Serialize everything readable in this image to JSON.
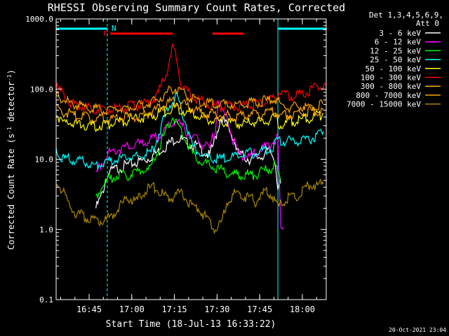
{
  "chart_data": {
    "type": "line",
    "title": "RHESSI Observing Summary Count Rates, Corrected",
    "xlabel": "Start Time (18-Jul-13 16:33:22)",
    "ylabel_parts": [
      "Corrected Count Rate (s",
      "-1",
      " detector",
      "-1",
      ")"
    ],
    "footer_date": "20-Oct-2021 23:04",
    "legend_header": [
      "Det 1,3,4,5,6,9,",
      "Att 0"
    ],
    "legend_placement": "top-right, outside plot",
    "y_scale": "log",
    "ylim": [
      0.1,
      1000
    ],
    "y_ticks": [
      0.1,
      1.0,
      10.0,
      100.0,
      1000.0
    ],
    "y_tick_labels": [
      "0.1",
      "1.0",
      "10.0",
      "100.0",
      "1000.0"
    ],
    "x_unit": "minutes since 16:33:22",
    "xlim": [
      0,
      95
    ],
    "x_ticks": [
      {
        "label": "16:45",
        "x": 11.6
      },
      {
        "label": "17:00",
        "x": 26.6
      },
      {
        "label": "17:15",
        "x": 41.6
      },
      {
        "label": "17:30",
        "x": 56.6
      },
      {
        "label": "17:45",
        "x": 71.6
      },
      {
        "label": "18:00",
        "x": 86.6
      }
    ],
    "flags": [
      {
        "label": "N",
        "color": "#00ffff",
        "segments": [
          [
            0,
            18
          ],
          [
            78,
            95
          ]
        ]
      },
      {
        "label": "F",
        "color": "#ff0000",
        "segments": [
          [
            19,
            41
          ],
          [
            55,
            66
          ]
        ]
      }
    ],
    "night_boundaries": [
      18.0,
      78.0,
      95.0
    ],
    "series": [
      {
        "name": "3 - 6 keV",
        "color": "#ffffff",
        "points": [
          [
            14,
            2
          ],
          [
            16,
            3
          ],
          [
            18,
            6
          ],
          [
            20,
            7
          ],
          [
            24,
            8
          ],
          [
            28,
            9
          ],
          [
            32,
            10
          ],
          [
            36,
            13
          ],
          [
            40,
            17
          ],
          [
            42,
            20
          ],
          [
            44,
            19
          ],
          [
            46,
            17
          ],
          [
            50,
            15
          ],
          [
            54,
            11
          ],
          [
            56,
            20
          ],
          [
            58,
            40
          ],
          [
            60,
            30
          ],
          [
            62,
            22
          ],
          [
            64,
            12
          ],
          [
            68,
            10
          ],
          [
            72,
            11
          ],
          [
            75,
            13
          ],
          [
            77,
            10
          ],
          [
            78,
            4
          ],
          [
            79,
            4.5
          ]
        ]
      },
      {
        "name": "6 - 12 keV",
        "color": "#ff00ff",
        "points": [
          [
            14,
            6
          ],
          [
            16,
            9
          ],
          [
            18,
            12
          ],
          [
            22,
            14
          ],
          [
            26,
            15
          ],
          [
            30,
            17
          ],
          [
            34,
            19
          ],
          [
            38,
            25
          ],
          [
            41,
            32
          ],
          [
            42,
            37
          ],
          [
            44,
            30
          ],
          [
            47,
            22
          ],
          [
            50,
            18
          ],
          [
            54,
            14
          ],
          [
            56,
            28
          ],
          [
            57,
            70
          ],
          [
            58,
            50
          ],
          [
            60,
            40
          ],
          [
            62,
            20
          ],
          [
            64,
            12
          ],
          [
            68,
            11
          ],
          [
            72,
            13
          ],
          [
            76,
            18
          ],
          [
            78,
            20
          ],
          [
            79,
            1.0
          ],
          [
            80,
            1.0
          ]
        ]
      },
      {
        "name": "12 - 25 keV",
        "color": "#00ff00",
        "points": [
          [
            14,
            3
          ],
          [
            16,
            4
          ],
          [
            18,
            5
          ],
          [
            22,
            6
          ],
          [
            26,
            6
          ],
          [
            30,
            7
          ],
          [
            33,
            7
          ],
          [
            36,
            14
          ],
          [
            38,
            22
          ],
          [
            40,
            32
          ],
          [
            41,
            42
          ],
          [
            42,
            36
          ],
          [
            44,
            25
          ],
          [
            46,
            18
          ],
          [
            48,
            12
          ],
          [
            50,
            10
          ],
          [
            54,
            8
          ],
          [
            58,
            7
          ],
          [
            62,
            6
          ],
          [
            66,
            6
          ],
          [
            70,
            6
          ],
          [
            74,
            7
          ],
          [
            77,
            8
          ],
          [
            79,
            5
          ]
        ]
      },
      {
        "name": "25 - 50 keV",
        "color": "#00ffff",
        "points": [
          [
            0,
            15
          ],
          [
            2,
            10
          ],
          [
            6,
            10
          ],
          [
            10,
            9
          ],
          [
            14,
            8
          ],
          [
            18,
            9
          ],
          [
            22,
            10
          ],
          [
            26,
            10.5
          ],
          [
            30,
            11
          ],
          [
            34,
            13
          ],
          [
            38,
            40
          ],
          [
            40,
            60
          ],
          [
            42,
            80
          ],
          [
            44,
            50
          ],
          [
            46,
            30
          ],
          [
            48,
            15
          ],
          [
            52,
            11
          ],
          [
            56,
            10
          ],
          [
            60,
            10.5
          ],
          [
            64,
            11
          ],
          [
            68,
            12
          ],
          [
            72,
            13
          ],
          [
            76,
            15
          ],
          [
            78,
            18
          ],
          [
            82,
            18
          ],
          [
            86,
            19
          ],
          [
            90,
            20
          ],
          [
            94,
            25
          ]
        ]
      },
      {
        "name": "50 - 100 keV",
        "color": "#ffff00",
        "points": [
          [
            0,
            45
          ],
          [
            2,
            35
          ],
          [
            6,
            32
          ],
          [
            10,
            31
          ],
          [
            14,
            30
          ],
          [
            18,
            32
          ],
          [
            22,
            33
          ],
          [
            26,
            36
          ],
          [
            30,
            38
          ],
          [
            34,
            42
          ],
          [
            38,
            48
          ],
          [
            40,
            52
          ],
          [
            42,
            55
          ],
          [
            44,
            52
          ],
          [
            46,
            48
          ],
          [
            50,
            40
          ],
          [
            54,
            36
          ],
          [
            58,
            33
          ],
          [
            62,
            32
          ],
          [
            66,
            32
          ],
          [
            70,
            34
          ],
          [
            74,
            36
          ],
          [
            77,
            40
          ],
          [
            79,
            30
          ],
          [
            82,
            35
          ],
          [
            86,
            36
          ],
          [
            90,
            38
          ],
          [
            94,
            45
          ]
        ]
      },
      {
        "name": "100 - 300 keV",
        "color": "#ff0000",
        "points": [
          [
            0,
            110
          ],
          [
            2,
            90
          ],
          [
            4,
            70
          ],
          [
            6,
            60
          ],
          [
            10,
            55
          ],
          [
            14,
            52
          ],
          [
            18,
            52
          ],
          [
            22,
            54
          ],
          [
            26,
            57
          ],
          [
            30,
            60
          ],
          [
            34,
            70
          ],
          [
            36,
            90
          ],
          [
            38,
            140
          ],
          [
            40,
            250
          ],
          [
            41,
            380
          ],
          [
            42,
            320
          ],
          [
            43,
            200
          ],
          [
            44,
            120
          ],
          [
            46,
            90
          ],
          [
            50,
            70
          ],
          [
            54,
            60
          ],
          [
            58,
            57
          ],
          [
            62,
            56
          ],
          [
            66,
            58
          ],
          [
            70,
            62
          ],
          [
            74,
            68
          ],
          [
            77,
            75
          ],
          [
            79,
            95
          ],
          [
            80,
            80
          ],
          [
            82,
            78
          ],
          [
            86,
            85
          ],
          [
            90,
            95
          ],
          [
            93,
            120
          ],
          [
            95,
            110
          ]
        ]
      },
      {
        "name": "300 - 800 keV",
        "color": "#ffa500",
        "points": [
          [
            0,
            55
          ],
          [
            2,
            48
          ],
          [
            6,
            42
          ],
          [
            10,
            40
          ],
          [
            14,
            38
          ],
          [
            18,
            38
          ],
          [
            22,
            39
          ],
          [
            26,
            40
          ],
          [
            30,
            42
          ],
          [
            34,
            48
          ],
          [
            38,
            58
          ],
          [
            40,
            63
          ],
          [
            42,
            65
          ],
          [
            44,
            62
          ],
          [
            46,
            56
          ],
          [
            50,
            48
          ],
          [
            54,
            44
          ],
          [
            58,
            42
          ],
          [
            62,
            41
          ],
          [
            66,
            42
          ],
          [
            70,
            44
          ],
          [
            74,
            46
          ],
          [
            77,
            48
          ],
          [
            79,
            42
          ],
          [
            82,
            44
          ],
          [
            86,
            46
          ],
          [
            90,
            48
          ],
          [
            94,
            50
          ]
        ]
      },
      {
        "name": "800 - 7000 keV",
        "color": "#ffa500",
        "points": [
          [
            0,
            82
          ],
          [
            2,
            70
          ],
          [
            6,
            62
          ],
          [
            10,
            56
          ],
          [
            14,
            52
          ],
          [
            18,
            52
          ],
          [
            22,
            53
          ],
          [
            26,
            55
          ],
          [
            30,
            58
          ],
          [
            34,
            66
          ],
          [
            38,
            82
          ],
          [
            40,
            95
          ],
          [
            42,
            100
          ],
          [
            44,
            92
          ],
          [
            46,
            82
          ],
          [
            50,
            68
          ],
          [
            54,
            62
          ],
          [
            58,
            60
          ],
          [
            62,
            60
          ],
          [
            66,
            62
          ],
          [
            70,
            65
          ],
          [
            74,
            68
          ],
          [
            77,
            72
          ],
          [
            79,
            60
          ],
          [
            82,
            56
          ],
          [
            86,
            56
          ],
          [
            90,
            58
          ],
          [
            94,
            62
          ]
        ]
      },
      {
        "name": "7000 - 15000 keV",
        "color": "#aa8800",
        "points": [
          [
            0,
            4.5
          ],
          [
            2,
            3.8
          ],
          [
            4,
            2.5
          ],
          [
            6,
            1.8
          ],
          [
            10,
            1.5
          ],
          [
            14,
            1.3
          ],
          [
            18,
            1.4
          ],
          [
            20,
            1.6
          ],
          [
            22,
            2.0
          ],
          [
            24,
            2.5
          ],
          [
            26,
            2.8
          ],
          [
            28,
            2.4
          ],
          [
            30,
            3.2
          ],
          [
            32,
            3.8
          ],
          [
            34,
            4.0
          ],
          [
            36,
            3.5
          ],
          [
            38,
            3.0
          ],
          [
            40,
            2.8
          ],
          [
            42,
            3.0
          ],
          [
            44,
            3.5
          ],
          [
            46,
            2.6
          ],
          [
            48,
            2.2
          ],
          [
            50,
            2.0
          ],
          [
            52,
            1.6
          ],
          [
            54,
            1.3
          ],
          [
            56,
            1.0
          ],
          [
            58,
            1.2
          ],
          [
            60,
            2.5
          ],
          [
            62,
            3.0
          ],
          [
            64,
            3.5
          ],
          [
            66,
            3.0
          ],
          [
            68,
            2.8
          ],
          [
            70,
            2.5
          ],
          [
            72,
            3.0
          ],
          [
            74,
            3.5
          ],
          [
            76,
            3.0
          ],
          [
            78,
            2.0
          ],
          [
            80,
            2.5
          ],
          [
            82,
            3.0
          ],
          [
            84,
            2.8
          ],
          [
            86,
            3.5
          ],
          [
            88,
            4.0
          ],
          [
            90,
            4.5
          ],
          [
            92,
            4.2
          ],
          [
            94,
            4.4
          ]
        ]
      }
    ]
  }
}
